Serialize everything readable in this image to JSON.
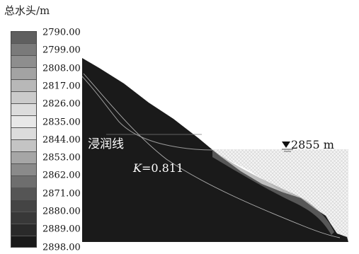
{
  "legend": {
    "title": "总水头/m",
    "levels": [
      "2790.00",
      "2799.00",
      "2808.00",
      "2817.00",
      "2826.00",
      "2835.00",
      "2844.00",
      "2853.00",
      "2862.00",
      "2871.00",
      "2880.00",
      "2889.00",
      "2898.00"
    ],
    "swatch_colors": [
      "#5f5f5f",
      "#7a7a7a",
      "#8e8e8e",
      "#a3a3a3",
      "#b8b8b8",
      "#cbcbcb",
      "#dcdcdc",
      "#e8e8e8",
      "#dcdcdc",
      "#c4c4c4",
      "#a6a6a6",
      "#8a8a8a",
      "#6e6e6e",
      "#555555",
      "#444444",
      "#383838",
      "#2a2a2a",
      "#1a1a1a"
    ]
  },
  "annotations": {
    "phreatic_line": "浸润线",
    "safety_factor_symbol": "K",
    "safety_factor_value": "=0.811",
    "water_level": "2855 m"
  },
  "colors": {
    "slope_mass": "#1a1a1a",
    "water_area": "#f2f2f2",
    "lines": "#9a9a9a"
  }
}
